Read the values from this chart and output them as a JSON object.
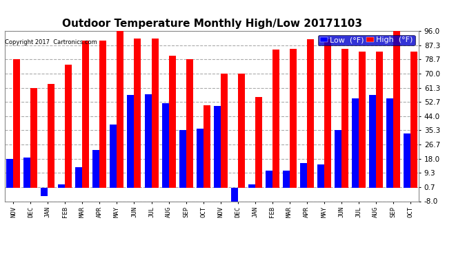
{
  "title": "Outdoor Temperature Monthly High/Low 20171103",
  "copyright": "Copyright 2017  Cartronics.com",
  "legend_low": "Low  (°F)",
  "legend_high": "High  (°F)",
  "months": [
    "NOV",
    "DEC",
    "JAN",
    "FEB",
    "MAR",
    "APR",
    "MAY",
    "JUN",
    "JUL",
    "AUG",
    "SEP",
    "OCT",
    "NOV",
    "DEC",
    "JAN",
    "FEB",
    "MAR",
    "APR",
    "MAY",
    "JUN",
    "JUL",
    "AUG",
    "SEP",
    "OCT"
  ],
  "high_values": [
    78.7,
    61.3,
    63.5,
    75.5,
    90.0,
    90.0,
    96.0,
    91.5,
    91.5,
    80.7,
    78.7,
    50.5,
    70.0,
    70.0,
    55.5,
    84.5,
    85.0,
    91.0,
    91.0,
    85.0,
    83.5,
    83.5,
    96.0,
    83.5
  ],
  "low_values": [
    18.0,
    18.5,
    -5.0,
    2.5,
    13.0,
    23.5,
    39.0,
    57.0,
    57.5,
    52.0,
    35.5,
    36.5,
    50.0,
    -10.0,
    2.5,
    10.5,
    10.5,
    15.5,
    14.5,
    35.5,
    55.0,
    57.0,
    55.0,
    33.5
  ],
  "ylim": [
    -8.0,
    96.0
  ],
  "yticks": [
    -8.0,
    0.7,
    9.3,
    18.0,
    26.7,
    35.3,
    44.0,
    52.7,
    61.3,
    70.0,
    78.7,
    87.3,
    96.0
  ],
  "bar_width": 0.4,
  "high_color": "#ff0000",
  "low_color": "#0000ff",
  "bg_color": "#ffffff",
  "grid_color": "#aaaaaa",
  "title_fontsize": 11,
  "tick_fontsize": 7.5,
  "legend_fontsize": 8
}
